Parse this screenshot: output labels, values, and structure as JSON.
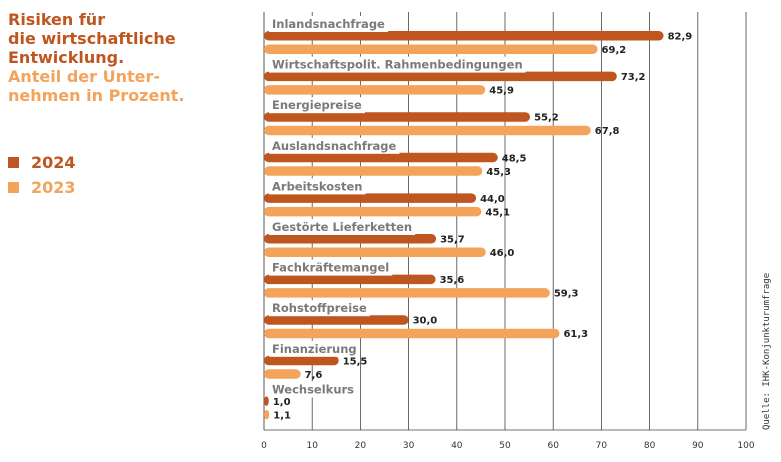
{
  "title": [
    "Risiken für",
    "die wirtschaftliche",
    "Entwicklung."
  ],
  "subtitle": [
    "Anteil der Unter-",
    "nehmen in Prozent."
  ],
  "source": "Quelle: IHK-Konjunkturumfrage",
  "legend": [
    {
      "label": "2024",
      "color": "#c0561f"
    },
    {
      "label": "2023",
      "color": "#f3a45a"
    }
  ],
  "chart_data": {
    "type": "bar",
    "orientation": "horizontal",
    "categories": [
      "Inlandsnachfrage",
      "Wirtschaftspolit. Rahmenbedingungen",
      "Energiepreise",
      "Auslandsnachfrage",
      "Arbeitskosten",
      "Gestörte Lieferketten",
      "Fachkräftemangel",
      "Rohstoffpreise",
      "Finanzierung",
      "Wechselkurs"
    ],
    "series": [
      {
        "name": "2024",
        "color": "#c0561f",
        "values": [
          82.9,
          73.2,
          55.2,
          48.5,
          44.0,
          35.7,
          35.6,
          30.0,
          15.5,
          1.0
        ],
        "labels": [
          "82,9",
          "73,2",
          "55,2",
          "48,5",
          "44,0",
          "35,7",
          "35,6",
          "30,0",
          "15,5",
          "1,0"
        ]
      },
      {
        "name": "2023",
        "color": "#f3a45a",
        "values": [
          69.2,
          45.9,
          67.8,
          45.3,
          45.1,
          46.0,
          59.3,
          61.3,
          7.6,
          1.1
        ],
        "labels": [
          "69,2",
          "45,9",
          "67,8",
          "45,3",
          "45,1",
          "46,0",
          "59,3",
          "61,3",
          "7,6",
          "1,1"
        ]
      }
    ],
    "xlim": [
      0,
      100
    ],
    "xticks": [
      0,
      10,
      20,
      30,
      40,
      50,
      60,
      70,
      80,
      90,
      100
    ],
    "grid": true,
    "legend_position": "left"
  }
}
